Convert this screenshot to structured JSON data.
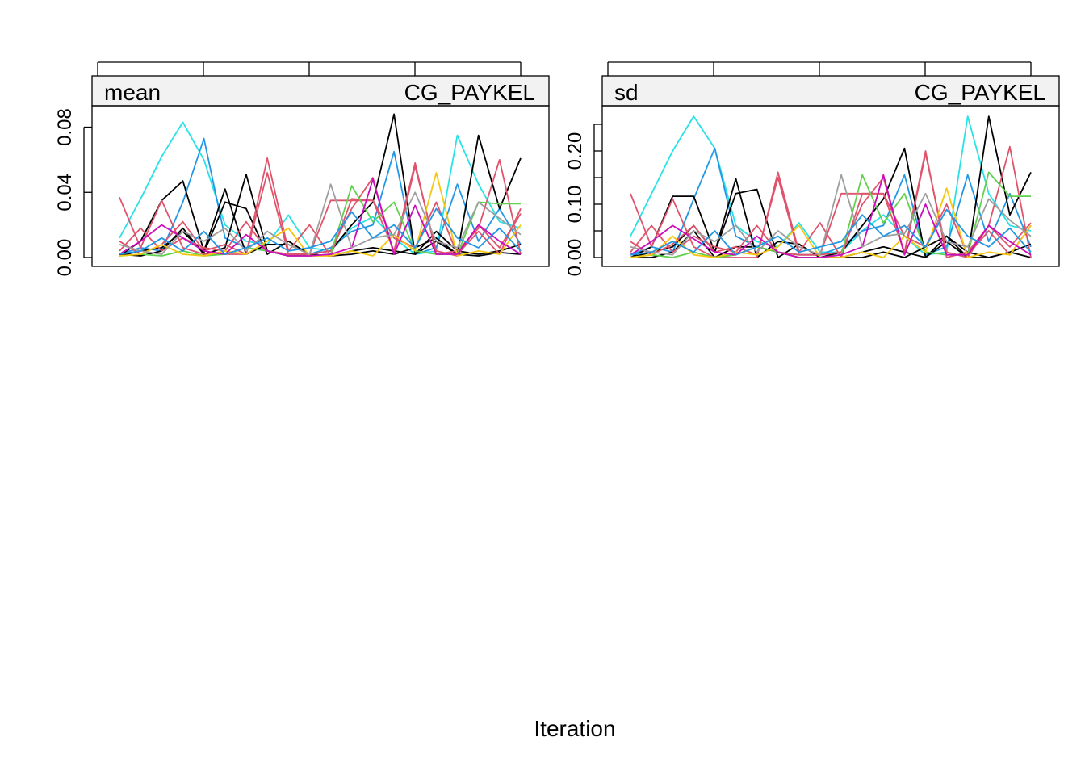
{
  "figure": {
    "xlabel": "Iteration"
  },
  "colors": {
    "strip_background": "#f2f2f2",
    "frame": "#000000",
    "palette": [
      "#000000",
      "#df536b",
      "#61d04f",
      "#2297e6",
      "#28e2e5",
      "#cd0bbc",
      "#f5c710",
      "#9e9e9e"
    ]
  },
  "chart_data": [
    {
      "type": "line",
      "strip_left": "mean",
      "strip_right": "CG_PAYKEL",
      "ylim": [
        0,
        0.092
      ],
      "yticks": [
        "0.00",
        "0.04",
        "0.08"
      ],
      "ytick_values": [
        0,
        0.04,
        0.08
      ],
      "x": [
        1,
        2,
        3,
        4,
        5,
        6,
        7,
        8,
        9,
        10,
        11,
        12,
        13,
        14,
        15,
        16,
        17,
        18,
        19,
        20
      ],
      "xtick_count": 5,
      "grid": false,
      "series": [
        {
          "color": "#28e2e5",
          "values": [
            0.012,
            0.036,
            0.062,
            0.083,
            0.06,
            0.02,
            0.01,
            0.008,
            0.026,
            0.006,
            0.004,
            0.018,
            0.025,
            0.012,
            0.002,
            0.004,
            0.075,
            0.045,
            0.022,
            0.018
          ]
        },
        {
          "color": "#2297e6",
          "values": [
            0.002,
            0.006,
            0.004,
            0.034,
            0.073,
            0.012,
            0.006,
            0.004,
            0.002,
            0.002,
            0.006,
            0.016,
            0.02,
            0.065,
            0.002,
            0.006,
            0.045,
            0.01,
            0.03,
            0.008
          ]
        },
        {
          "color": "#000000",
          "values": [
            0.001,
            0.01,
            0.035,
            0.047,
            0.004,
            0.042,
            0.002,
            0.008,
            0.008,
            0.002,
            0.004,
            0.02,
            0.034,
            0.088,
            0.002,
            0.01,
            0.002,
            0.075,
            0.03,
            0.061
          ]
        },
        {
          "color": "#000000",
          "values": [
            0.001,
            0.004,
            0.006,
            0.016,
            0.003,
            0.034,
            0.03,
            0.002,
            0.01,
            0.002,
            0.001,
            0.004,
            0.006,
            0.004,
            0.002,
            0.016,
            0.004,
            0.002,
            0.004,
            0.008
          ]
        },
        {
          "color": "#000000",
          "values": [
            0.002,
            0.001,
            0.004,
            0.018,
            0.002,
            0.006,
            0.051,
            0.004,
            0.001,
            0.002,
            0.001,
            0.002,
            0.004,
            0.002,
            0.006,
            0.012,
            0.002,
            0.001,
            0.003,
            0.002
          ]
        },
        {
          "color": "#df536b",
          "values": [
            0.037,
            0.006,
            0.035,
            0.006,
            0.002,
            0.002,
            0.002,
            0.061,
            0.004,
            0.02,
            0.001,
            0.036,
            0.035,
            0.004,
            0.058,
            0.002,
            0.004,
            0.018,
            0.06,
            0.002
          ]
        },
        {
          "color": "#df536b",
          "values": [
            0.01,
            0.002,
            0.008,
            0.022,
            0.004,
            0.008,
            0.002,
            0.052,
            0.002,
            0.002,
            0.004,
            0.03,
            0.049,
            0.002,
            0.056,
            0.004,
            0.001,
            0.02,
            0.006,
            0.027
          ]
        },
        {
          "color": "#df536b",
          "values": [
            0.004,
            0.018,
            0.004,
            0.012,
            0.006,
            0.004,
            0.022,
            0.004,
            0.002,
            0.002,
            0.035,
            0.035,
            0.035,
            0.012,
            0.006,
            0.034,
            0.002,
            0.016,
            0.002,
            0.03
          ]
        },
        {
          "color": "#61d04f",
          "values": [
            0.001,
            0.002,
            0.001,
            0.004,
            0.001,
            0.002,
            0.006,
            0.004,
            0.001,
            0.001,
            0.002,
            0.044,
            0.022,
            0.034,
            0.004,
            0.002,
            0.002,
            0.034,
            0.033,
            0.033
          ]
        },
        {
          "color": "#f5c710",
          "values": [
            0.001,
            0.002,
            0.008,
            0.002,
            0.001,
            0.004,
            0.002,
            0.01,
            0.018,
            0.001,
            0.001,
            0.004,
            0.001,
            0.014,
            0.004,
            0.052,
            0.001,
            0.004,
            0.002,
            0.02
          ]
        },
        {
          "color": "#cd0bbc",
          "values": [
            0.002,
            0.01,
            0.02,
            0.012,
            0.004,
            0.002,
            0.014,
            0.004,
            0.001,
            0.001,
            0.002,
            0.006,
            0.048,
            0.002,
            0.032,
            0.002,
            0.002,
            0.02,
            0.01,
            0.002
          ]
        },
        {
          "color": "#9e9e9e",
          "values": [
            0.008,
            0.004,
            0.002,
            0.016,
            0.01,
            0.018,
            0.004,
            0.016,
            0.008,
            0.002,
            0.045,
            0.006,
            0.012,
            0.014,
            0.04,
            0.01,
            0.006,
            0.034,
            0.024,
            0.014
          ]
        },
        {
          "color": "#2297e6",
          "values": [
            0.002,
            0.004,
            0.012,
            0.004,
            0.016,
            0.002,
            0.006,
            0.012,
            0.004,
            0.006,
            0.01,
            0.028,
            0.012,
            0.02,
            0.006,
            0.03,
            0.012,
            0.006,
            0.018,
            0.004
          ]
        }
      ]
    },
    {
      "type": "line",
      "strip_left": "sd",
      "strip_right": "CG_PAYKEL",
      "ylim": [
        0,
        0.262
      ],
      "yticks": [
        "0.00",
        "0.10",
        "0.20"
      ],
      "ytick_values": [
        0,
        0.1,
        0.2
      ],
      "minor_ytick_values": [
        0.05,
        0.15,
        0.25
      ],
      "x": [
        1,
        2,
        3,
        4,
        5,
        6,
        7,
        8,
        9,
        10,
        11,
        12,
        13,
        14,
        15,
        16,
        17,
        18,
        19,
        20
      ],
      "xtick_count": 5,
      "grid": false,
      "series": [
        {
          "color": "#28e2e5",
          "values": [
            0.04,
            0.12,
            0.2,
            0.265,
            0.205,
            0.06,
            0.03,
            0.02,
            0.065,
            0.01,
            0.01,
            0.05,
            0.08,
            0.04,
            0.005,
            0.01,
            0.265,
            0.12,
            0.06,
            0.05
          ]
        },
        {
          "color": "#2297e6",
          "values": [
            0.005,
            0.02,
            0.01,
            0.11,
            0.205,
            0.04,
            0.02,
            0.01,
            0.005,
            0.005,
            0.02,
            0.05,
            0.06,
            0.155,
            0.005,
            0.02,
            0.155,
            0.03,
            0.12,
            0.02
          ]
        },
        {
          "color": "#000000",
          "values": [
            0.0,
            0.02,
            0.115,
            0.115,
            0.01,
            0.148,
            0.0,
            0.03,
            0.025,
            0.0,
            0.01,
            0.06,
            0.11,
            0.205,
            0.0,
            0.03,
            0.0,
            0.265,
            0.08,
            0.16
          ]
        },
        {
          "color": "#000000",
          "values": [
            0.0,
            0.01,
            0.02,
            0.06,
            0.01,
            0.12,
            0.128,
            0.0,
            0.025,
            0.0,
            0.0,
            0.01,
            0.02,
            0.01,
            0.0,
            0.04,
            0.01,
            0.0,
            0.01,
            0.025
          ]
        },
        {
          "color": "#000000",
          "values": [
            0.0,
            0.0,
            0.01,
            0.05,
            0.0,
            0.02,
            0.02,
            0.01,
            0.0,
            0.0,
            0.0,
            0.0,
            0.01,
            0.0,
            0.02,
            0.04,
            0.0,
            0.0,
            0.01,
            0.0
          ]
        },
        {
          "color": "#df536b",
          "values": [
            0.12,
            0.02,
            0.11,
            0.02,
            0.0,
            0.0,
            0.0,
            0.16,
            0.01,
            0.065,
            0.0,
            0.12,
            0.12,
            0.01,
            0.2,
            0.0,
            0.01,
            0.06,
            0.208,
            0.0
          ]
        },
        {
          "color": "#df536b",
          "values": [
            0.03,
            0.005,
            0.025,
            0.06,
            0.01,
            0.02,
            0.005,
            0.15,
            0.005,
            0.005,
            0.01,
            0.1,
            0.15,
            0.005,
            0.195,
            0.01,
            0.0,
            0.06,
            0.02,
            0.065
          ]
        },
        {
          "color": "#df536b",
          "values": [
            0.01,
            0.06,
            0.01,
            0.04,
            0.02,
            0.01,
            0.06,
            0.01,
            0.005,
            0.005,
            0.12,
            0.12,
            0.12,
            0.04,
            0.02,
            0.1,
            0.005,
            0.05,
            0.005,
            0.06
          ]
        },
        {
          "color": "#61d04f",
          "values": [
            0.0,
            0.005,
            0.0,
            0.01,
            0.0,
            0.005,
            0.02,
            0.01,
            0.0,
            0.0,
            0.005,
            0.155,
            0.065,
            0.12,
            0.01,
            0.005,
            0.005,
            0.16,
            0.115,
            0.115
          ]
        },
        {
          "color": "#f5c710",
          "values": [
            0.0,
            0.005,
            0.04,
            0.005,
            0.0,
            0.01,
            0.005,
            0.02,
            0.06,
            0.0,
            0.0,
            0.01,
            0.0,
            0.04,
            0.01,
            0.13,
            0.0,
            0.01,
            0.005,
            0.06
          ]
        },
        {
          "color": "#cd0bbc",
          "values": [
            0.005,
            0.03,
            0.06,
            0.035,
            0.01,
            0.005,
            0.04,
            0.01,
            0.0,
            0.0,
            0.005,
            0.02,
            0.155,
            0.005,
            0.1,
            0.005,
            0.005,
            0.06,
            0.03,
            0.005
          ]
        },
        {
          "color": "#9e9e9e",
          "values": [
            0.02,
            0.01,
            0.005,
            0.05,
            0.03,
            0.06,
            0.01,
            0.05,
            0.02,
            0.005,
            0.155,
            0.02,
            0.04,
            0.045,
            0.12,
            0.03,
            0.02,
            0.11,
            0.07,
            0.04
          ]
        },
        {
          "color": "#2297e6",
          "values": [
            0.005,
            0.01,
            0.03,
            0.01,
            0.05,
            0.005,
            0.02,
            0.04,
            0.01,
            0.02,
            0.03,
            0.08,
            0.04,
            0.06,
            0.02,
            0.09,
            0.04,
            0.02,
            0.055,
            0.01
          ]
        }
      ]
    }
  ]
}
